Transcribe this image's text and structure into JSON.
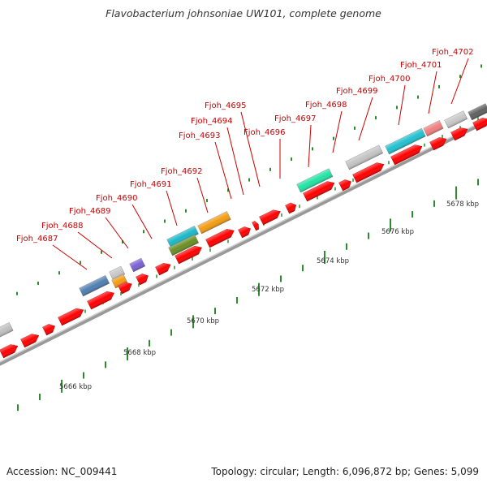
{
  "title": "Flavobacterium johnsoniae UW101, complete genome",
  "footer": {
    "accession": "Accession: NC_009441",
    "topology": "Topology: circular; Length: 6,096,872 bp; Genes: 5,099"
  },
  "colors": {
    "gene_red": "#ff0000",
    "label_red": "#cc0000",
    "backbone": "#999999",
    "tick_green": "#2e8b2e"
  },
  "scale_labels": [
    "5666 kbp",
    "5668 kbp",
    "5670 kbp",
    "5672 kbp",
    "5674 kbp",
    "5676 kbp",
    "5678 kbp"
  ],
  "gene_labels": [
    "Fjoh_4687",
    "Fjoh_4688",
    "Fjoh_4689",
    "Fjoh_4690",
    "Fjoh_4691",
    "Fjoh_4692",
    "Fjoh_4693",
    "Fjoh_4694",
    "Fjoh_4695",
    "Fjoh_4696",
    "Fjoh_4697",
    "Fjoh_4698",
    "Fjoh_4699",
    "Fjoh_4700",
    "Fjoh_4701",
    "Fjoh_4702"
  ]
}
